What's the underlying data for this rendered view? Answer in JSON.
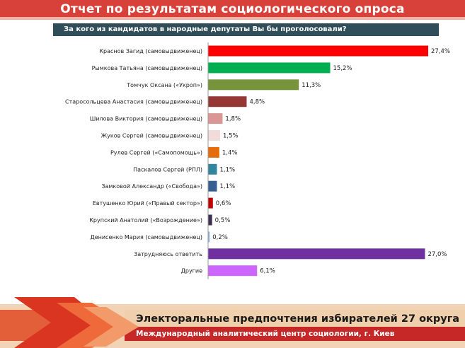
{
  "header": {
    "title": "Отчет по результатам социологического опроса",
    "question": "За кого из кандидатов в народные депутаты Вы бы проголосовали?"
  },
  "chart_data": {
    "type": "bar",
    "orientation": "horizontal",
    "categories": [
      "Краснов Загид (самовыдвиженец)",
      "Рымкова Татьяна (самовыдвиженец)",
      "Томчук Оксана («Укроп»)",
      "Старосольцева Анастасия (самовыдвиженец)",
      "Шилова Виктория (самовыдвиженец)",
      "Жуков Сергей (самовыдвиженец)",
      "Рулев Сергей («Самопомощь»)",
      "Паскалов Сергей (РПЛ)",
      "Замковой Александр («Свобода»)",
      "Евтушенко Юрий («Правый сектор»)",
      "Крупский Анатолий («Возрождение»)",
      "Денисенко Мария (самовыдвиженец)",
      "Затрудняюсь ответить",
      "Другие"
    ],
    "values": [
      27.4,
      15.2,
      11.3,
      4.8,
      1.8,
      1.5,
      1.4,
      1.1,
      1.1,
      0.6,
      0.5,
      0.2,
      27.0,
      6.1
    ],
    "value_labels": [
      "27,4%",
      "15,2%",
      "11,3%",
      "4,8%",
      "1,8%",
      "1,5%",
      "1,4%",
      "1,1%",
      "1,1%",
      "0,6%",
      "0,5%",
      "0,2%",
      "27,0%",
      "6,1%"
    ],
    "colors": [
      "#ff0000",
      "#00b050",
      "#77933c",
      "#953735",
      "#d99694",
      "#f2dcdb",
      "#e46c0a",
      "#31859c",
      "#376092",
      "#c00000",
      "#403151",
      "#8eb4e3",
      "#7030a0",
      "#cc66ff"
    ],
    "xlim": [
      0,
      30
    ],
    "grid": false,
    "legend": "none"
  },
  "footer": {
    "title": "Электоральные предпочтения избирателей 27 округа",
    "subtitle": "Международный аналитический центр социологии, г. Киев"
  }
}
